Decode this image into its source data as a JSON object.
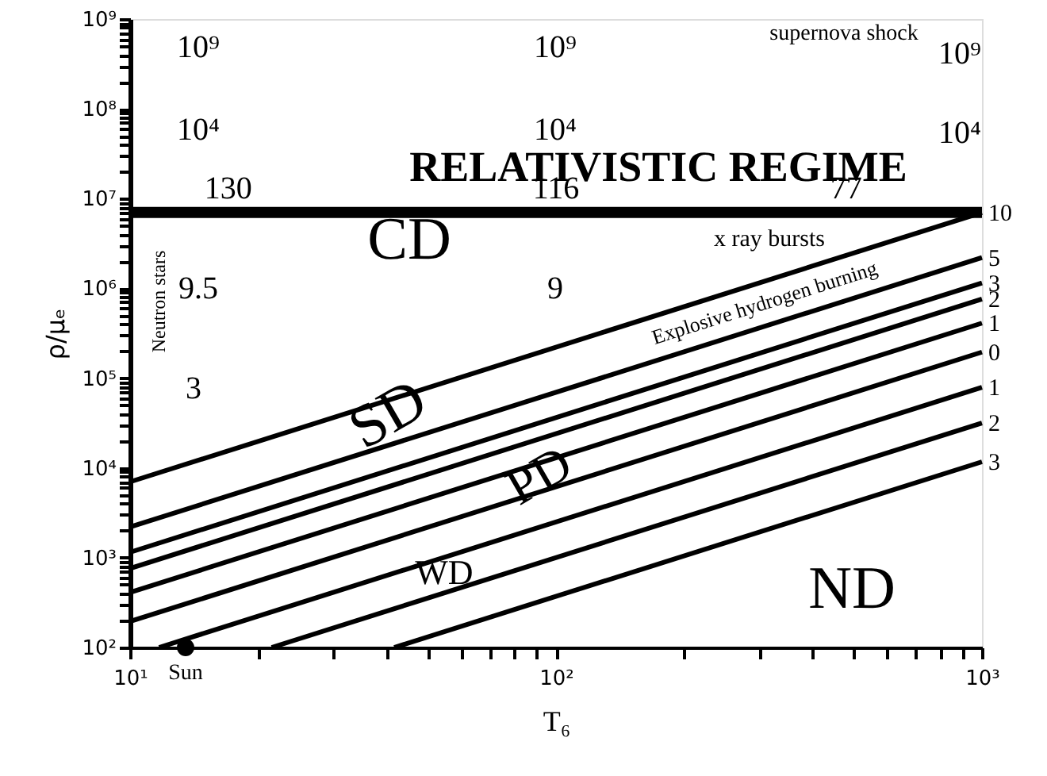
{
  "chart_data": {
    "type": "line",
    "xlabel": "T₆",
    "ylabel": "ρ/μₑ",
    "log": "xy",
    "grid": false,
    "line_style": "solid",
    "xlim": [
      10,
      1000
    ],
    "ylim": [
      100,
      1000000000
    ],
    "xticks": [
      {
        "value": 10,
        "label": "10¹"
      },
      {
        "value": 20,
        "label": null
      },
      {
        "value": 30,
        "label": null
      },
      {
        "value": 40,
        "label": null
      },
      {
        "value": 50,
        "label": null
      },
      {
        "value": 60,
        "label": null
      },
      {
        "value": 70,
        "label": null
      },
      {
        "value": 80,
        "label": null
      },
      {
        "value": 90,
        "label": null
      },
      {
        "value": 100,
        "label": "10²"
      },
      {
        "value": 200,
        "label": null
      },
      {
        "value": 300,
        "label": null
      },
      {
        "value": 400,
        "label": null
      },
      {
        "value": 500,
        "label": null
      },
      {
        "value": 600,
        "label": null
      },
      {
        "value": 700,
        "label": null
      },
      {
        "value": 800,
        "label": null
      },
      {
        "value": 900,
        "label": null
      },
      {
        "value": 1000,
        "label": "10³"
      }
    ],
    "yticks": [
      {
        "value": 100,
        "label": "10²"
      },
      {
        "value": 200,
        "label": null
      },
      {
        "value": 300,
        "label": null
      },
      {
        "value": 400,
        "label": null
      },
      {
        "value": 500,
        "label": null
      },
      {
        "value": 600,
        "label": null
      },
      {
        "value": 700,
        "label": null
      },
      {
        "value": 800,
        "label": null
      },
      {
        "value": 900,
        "label": null
      },
      {
        "value": 1000,
        "label": "10³"
      },
      {
        "value": 2000,
        "label": null
      },
      {
        "value": 3000,
        "label": null
      },
      {
        "value": 4000,
        "label": null
      },
      {
        "value": 5000,
        "label": null
      },
      {
        "value": 6000,
        "label": null
      },
      {
        "value": 7000,
        "label": null
      },
      {
        "value": 8000,
        "label": null
      },
      {
        "value": 9000,
        "label": null
      },
      {
        "value": 10000,
        "label": "10⁴"
      },
      {
        "value": 20000,
        "label": null
      },
      {
        "value": 30000,
        "label": null
      },
      {
        "value": 40000,
        "label": null
      },
      {
        "value": 50000,
        "label": null
      },
      {
        "value": 60000,
        "label": null
      },
      {
        "value": 70000,
        "label": null
      },
      {
        "value": 80000,
        "label": null
      },
      {
        "value": 90000,
        "label": null
      },
      {
        "value": 100000,
        "label": "10⁵"
      },
      {
        "value": 200000,
        "label": null
      },
      {
        "value": 300000,
        "label": null
      },
      {
        "value": 400000,
        "label": null
      },
      {
        "value": 500000,
        "label": null
      },
      {
        "value": 600000,
        "label": null
      },
      {
        "value": 700000,
        "label": null
      },
      {
        "value": 800000,
        "label": null
      },
      {
        "value": 900000,
        "label": null
      },
      {
        "value": 1000000,
        "label": "10⁶"
      },
      {
        "value": 2000000,
        "label": null
      },
      {
        "value": 3000000,
        "label": null
      },
      {
        "value": 4000000,
        "label": null
      },
      {
        "value": 5000000,
        "label": null
      },
      {
        "value": 6000000,
        "label": null
      },
      {
        "value": 7000000,
        "label": null
      },
      {
        "value": 8000000,
        "label": null
      },
      {
        "value": 9000000,
        "label": null
      },
      {
        "value": 10000000,
        "label": "10⁷"
      },
      {
        "value": 20000000,
        "label": null
      },
      {
        "value": 30000000,
        "label": null
      },
      {
        "value": 40000000,
        "label": null
      },
      {
        "value": 50000000,
        "label": null
      },
      {
        "value": 60000000,
        "label": null
      },
      {
        "value": 70000000,
        "label": null
      },
      {
        "value": 80000000,
        "label": null
      },
      {
        "value": 90000000,
        "label": null
      },
      {
        "value": 100000000,
        "label": "10⁸"
      },
      {
        "value": 200000000,
        "label": null
      },
      {
        "value": 300000000,
        "label": null
      },
      {
        "value": 400000000,
        "label": null
      },
      {
        "value": 500000000,
        "label": null
      },
      {
        "value": 600000000,
        "label": null
      },
      {
        "value": 700000000,
        "label": null
      },
      {
        "value": 800000000,
        "label": null
      },
      {
        "value": 900000000,
        "label": null
      },
      {
        "value": 1000000000,
        "label": "10⁹"
      }
    ],
    "series": [
      {
        "name": "10",
        "color": "#000000",
        "x": [
          10,
          1000
        ],
        "values": [
          7000,
          7000000
        ]
      },
      {
        "name": "5",
        "color": "#000000",
        "x": [
          10,
          1000
        ],
        "values": [
          2200,
          2200000
        ]
      },
      {
        "name": "3",
        "color": "#000000",
        "x": [
          10,
          1000
        ],
        "values": [
          1150,
          1150000
        ]
      },
      {
        "name": "2",
        "color": "#000000",
        "x": [
          10,
          1000
        ],
        "values": [
          760,
          760000
        ]
      },
      {
        "name": "1",
        "color": "#000000",
        "x": [
          10,
          1000
        ],
        "values": [
          410,
          410000
        ]
      },
      {
        "name": "0",
        "color": "#000000",
        "x": [
          10,
          1000
        ],
        "values": [
          195,
          195000
        ]
      },
      {
        "name": "1",
        "color": "#000000",
        "x": [
          11.7,
          1000
        ],
        "values": [
          100,
          79000
        ]
      },
      {
        "name": "2",
        "color": "#000000",
        "x": [
          21.5,
          1000
        ],
        "values": [
          100,
          31700
        ]
      },
      {
        "name": "3",
        "color": "#000000",
        "x": [
          41.7,
          1000
        ],
        "values": [
          100,
          11700
        ]
      },
      {
        "name": "Sun",
        "type": "scatter",
        "marker": "circle",
        "color": "#000000",
        "x": [
          13.5
        ],
        "values": [
          100
        ]
      }
    ],
    "ref_lines": [
      {
        "axis": "y",
        "value": 7000000,
        "color": "#000000"
      }
    ],
    "annotations": [
      "RELATIVISTIC REGIME",
      "10⁹",
      "10⁴",
      {
        "text": "130",
        "x": 17,
        "y": 7000000
      },
      "9.5",
      "3",
      "10⁹",
      "10⁴",
      {
        "text": "116",
        "x": 100,
        "y": 7000000
      },
      "9",
      {
        "text": "77",
        "x": 480,
        "y": 7000000
      },
      "10⁹",
      "10⁴",
      "supernova shock",
      "x ray bursts",
      "Neutron stars",
      "Explosive hydrogen burning",
      "CD",
      "SD",
      "PD",
      "WD",
      "ND"
    ]
  }
}
